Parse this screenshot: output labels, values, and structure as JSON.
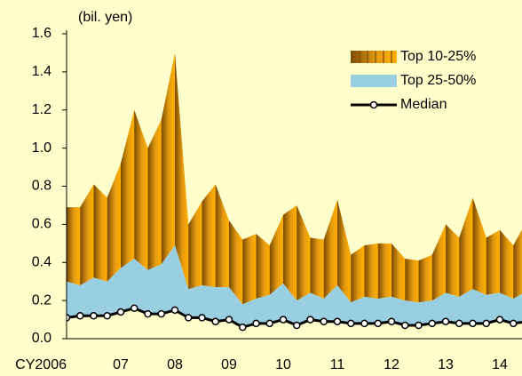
{
  "chart_data": {
    "type": "area",
    "y_axis_label": "(bil. yen)",
    "categories": [
      "CY2006",
      null,
      null,
      null,
      "07",
      null,
      null,
      null,
      "08",
      null,
      null,
      null,
      "09",
      null,
      null,
      null,
      "10",
      null,
      null,
      null,
      "11",
      null,
      null,
      null,
      "12",
      null,
      null,
      null,
      "13",
      null,
      null,
      null,
      "14",
      null,
      null
    ],
    "series": [
      {
        "name": "Top 10-25%",
        "color": "#e39a12",
        "values": [
          0.69,
          0.69,
          0.81,
          0.74,
          0.92,
          1.2,
          1.0,
          1.15,
          1.5,
          0.6,
          0.72,
          0.81,
          0.62,
          0.52,
          0.55,
          0.49,
          0.65,
          0.7,
          0.53,
          0.52,
          0.73,
          0.44,
          0.49,
          0.5,
          0.5,
          0.42,
          0.41,
          0.44,
          0.6,
          0.53,
          0.74,
          0.53,
          0.57,
          0.49,
          0.62
        ]
      },
      {
        "name": "Top 25-50%",
        "color": "#99cfe0",
        "values": [
          0.3,
          0.28,
          0.32,
          0.3,
          0.37,
          0.42,
          0.36,
          0.39,
          0.49,
          0.26,
          0.28,
          0.27,
          0.27,
          0.18,
          0.21,
          0.23,
          0.29,
          0.2,
          0.24,
          0.21,
          0.28,
          0.19,
          0.22,
          0.21,
          0.22,
          0.2,
          0.19,
          0.2,
          0.24,
          0.22,
          0.26,
          0.23,
          0.24,
          0.21,
          0.25
        ]
      },
      {
        "name": "Median",
        "color": "#000000",
        "values": [
          0.11,
          0.12,
          0.12,
          0.12,
          0.14,
          0.16,
          0.13,
          0.13,
          0.15,
          0.11,
          0.11,
          0.09,
          0.1,
          0.06,
          0.08,
          0.08,
          0.1,
          0.07,
          0.1,
          0.09,
          0.09,
          0.08,
          0.08,
          0.08,
          0.09,
          0.07,
          0.07,
          0.08,
          0.09,
          0.08,
          0.08,
          0.08,
          0.1,
          0.08,
          0.09
        ]
      }
    ],
    "ylim": [
      0,
      1.6
    ],
    "yticks": [
      {
        "value": 0,
        "label": "0.0"
      },
      0.2,
      0.4,
      0.6,
      0.8,
      {
        "value": 1,
        "label": "1.0"
      },
      1.2,
      1.4,
      1.6
    ],
    "legend": "upper right",
    "background": "#ffffcc"
  }
}
